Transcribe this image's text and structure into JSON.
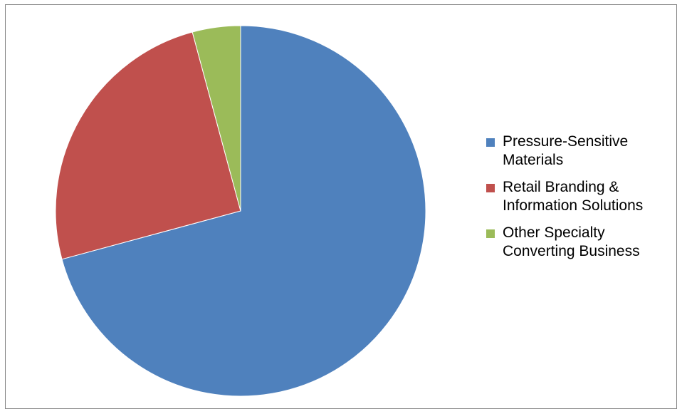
{
  "chart_data": {
    "type": "pie",
    "series": [
      {
        "values": [
          70.8,
          25.0,
          4.2
        ]
      }
    ],
    "categories": [
      "Pressure-Sensitive Materials",
      "Retail Branding & Information Solutions",
      "Other Specialty Converting Business"
    ],
    "legend_lines": [
      [
        "Pressure-Sensitive",
        "Materials"
      ],
      [
        "Retail Branding &",
        "Information Solutions"
      ],
      [
        "Other Specialty",
        "Converting Business"
      ]
    ],
    "colors": [
      "#4F81BD",
      "#C0504D",
      "#9BBB59"
    ],
    "legend_position": "right",
    "start_angle": "12 o'clock, clockwise"
  }
}
